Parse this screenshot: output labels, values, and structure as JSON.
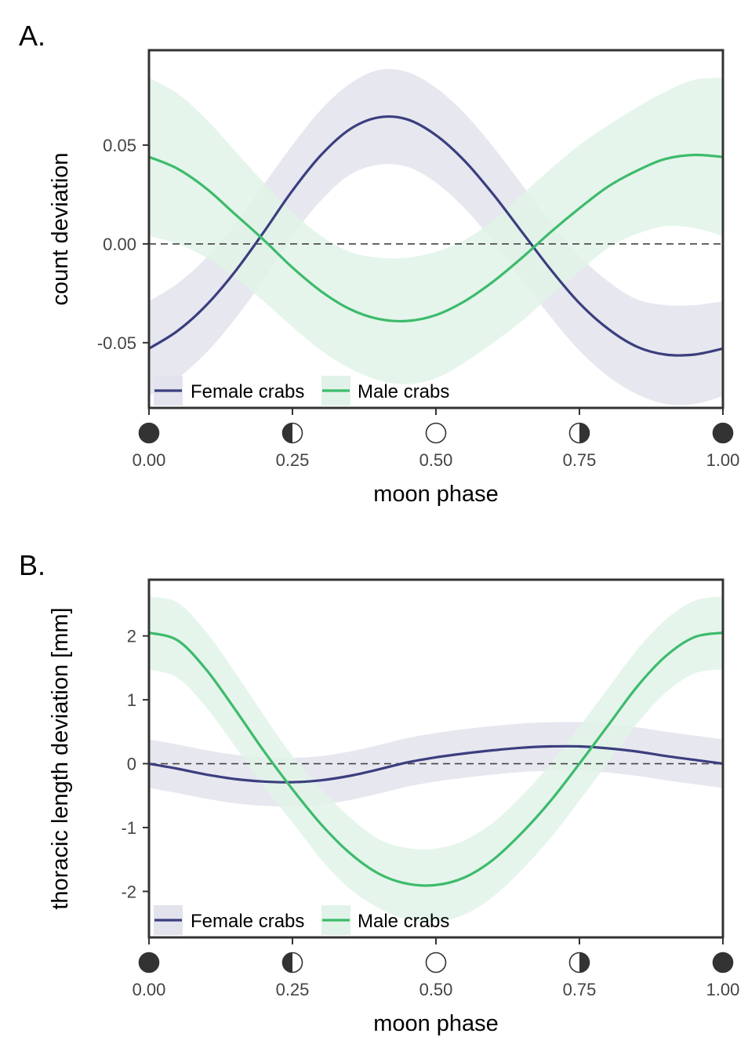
{
  "colors": {
    "female": "#3b3f7e",
    "male": "#3dbb6c",
    "female_band": "#e3e3ed",
    "male_band": "#e1f3e8",
    "axis": "#333333",
    "reference_line": "#444444"
  },
  "chart_data": [
    {
      "panel": "A.",
      "type": "line",
      "xlabel": "moon phase",
      "ylabel": "count deviation",
      "xlim": [
        0,
        1
      ],
      "ylim": [
        -0.083,
        0.098
      ],
      "xticks": [
        0,
        0.25,
        0.5,
        0.75,
        1
      ],
      "xtick_labels": [
        "0.00",
        "0.25",
        "0.50",
        "0.75",
        "1.00"
      ],
      "xtick_icons": [
        "new-moon",
        "first-quarter",
        "full-moon",
        "last-quarter",
        "new-moon"
      ],
      "yticks": [
        -0.05,
        0,
        0.05
      ],
      "ytick_labels": [
        "-0.05",
        "0.00",
        "0.05"
      ],
      "reference_line_y": 0,
      "legend": {
        "position": "bottom-left",
        "entries": [
          "Female crabs",
          "Male crabs"
        ]
      },
      "x": [
        0,
        0.05,
        0.1,
        0.15,
        0.2,
        0.25,
        0.3,
        0.35,
        0.4,
        0.45,
        0.5,
        0.55,
        0.6,
        0.65,
        0.7,
        0.75,
        0.8,
        0.85,
        0.9,
        0.95,
        1
      ],
      "series": [
        {
          "name": "Female crabs",
          "values": [
            -0.053,
            -0.044,
            -0.031,
            -0.014,
            0.006,
            0.027,
            0.045,
            0.058,
            0.064,
            0.063,
            0.055,
            0.042,
            0.025,
            0.006,
            -0.013,
            -0.03,
            -0.043,
            -0.052,
            -0.056,
            -0.056,
            -0.053
          ],
          "upper": [
            -0.029,
            -0.02,
            -0.007,
            0.01,
            0.03,
            0.05,
            0.068,
            0.081,
            0.088,
            0.087,
            0.079,
            0.066,
            0.049,
            0.03,
            0.011,
            -0.006,
            -0.019,
            -0.028,
            -0.031,
            -0.031,
            -0.029
          ],
          "lower": [
            -0.077,
            -0.068,
            -0.055,
            -0.038,
            -0.018,
            0.004,
            0.022,
            0.035,
            0.04,
            0.039,
            0.031,
            0.018,
            0.001,
            -0.018,
            -0.037,
            -0.054,
            -0.067,
            -0.076,
            -0.081,
            -0.081,
            -0.077
          ]
        },
        {
          "name": "Male crabs",
          "values": [
            0.044,
            0.038,
            0.028,
            0.015,
            0.002,
            -0.012,
            -0.024,
            -0.033,
            -0.038,
            -0.039,
            -0.036,
            -0.029,
            -0.019,
            -0.007,
            0.006,
            0.018,
            0.029,
            0.037,
            0.043,
            0.045,
            0.044
          ],
          "upper": [
            0.084,
            0.076,
            0.063,
            0.047,
            0.031,
            0.016,
            0.004,
            -0.004,
            -0.007,
            -0.007,
            -0.004,
            0.002,
            0.012,
            0.025,
            0.038,
            0.05,
            0.06,
            0.069,
            0.077,
            0.083,
            0.084
          ],
          "lower": [
            0.004,
            0.0,
            -0.007,
            -0.017,
            -0.029,
            -0.042,
            -0.054,
            -0.063,
            -0.069,
            -0.071,
            -0.068,
            -0.06,
            -0.05,
            -0.039,
            -0.026,
            -0.014,
            -0.002,
            0.005,
            0.009,
            0.008,
            0.004
          ]
        }
      ]
    },
    {
      "panel": "B.",
      "type": "line",
      "xlabel": "moon phase",
      "ylabel": "thoracic length deviation [mm]",
      "xlim": [
        0,
        1
      ],
      "ylim": [
        -2.72,
        2.88
      ],
      "xticks": [
        0,
        0.25,
        0.5,
        0.75,
        1
      ],
      "xtick_labels": [
        "0.00",
        "0.25",
        "0.50",
        "0.75",
        "1.00"
      ],
      "xtick_icons": [
        "new-moon",
        "first-quarter",
        "full-moon",
        "last-quarter",
        "new-moon"
      ],
      "yticks": [
        -2,
        -1,
        0,
        1,
        2
      ],
      "ytick_labels": [
        "-2",
        "-1",
        "0",
        "1",
        "2"
      ],
      "reference_line_y": 0,
      "legend": {
        "position": "bottom-left",
        "entries": [
          "Female crabs",
          "Male crabs"
        ]
      },
      "x": [
        0,
        0.05,
        0.1,
        0.15,
        0.2,
        0.25,
        0.3,
        0.35,
        0.4,
        0.45,
        0.5,
        0.55,
        0.6,
        0.65,
        0.7,
        0.75,
        0.8,
        0.85,
        0.9,
        0.95,
        1
      ],
      "series": [
        {
          "name": "Female crabs",
          "values": [
            0.0,
            -0.08,
            -0.17,
            -0.24,
            -0.28,
            -0.29,
            -0.26,
            -0.19,
            -0.09,
            0.02,
            0.1,
            0.16,
            0.21,
            0.25,
            0.27,
            0.27,
            0.24,
            0.19,
            0.12,
            0.06,
            0.0
          ],
          "upper": [
            0.38,
            0.3,
            0.21,
            0.14,
            0.1,
            0.09,
            0.12,
            0.19,
            0.29,
            0.4,
            0.48,
            0.54,
            0.59,
            0.63,
            0.65,
            0.65,
            0.62,
            0.57,
            0.5,
            0.44,
            0.38
          ],
          "lower": [
            -0.38,
            -0.46,
            -0.55,
            -0.62,
            -0.66,
            -0.67,
            -0.64,
            -0.57,
            -0.47,
            -0.36,
            -0.28,
            -0.22,
            -0.17,
            -0.13,
            -0.11,
            -0.11,
            -0.14,
            -0.19,
            -0.26,
            -0.32,
            -0.38
          ]
        },
        {
          "name": "Male crabs",
          "values": [
            2.05,
            1.93,
            1.47,
            0.85,
            0.2,
            -0.4,
            -0.95,
            -1.4,
            -1.72,
            -1.88,
            -1.9,
            -1.78,
            -1.5,
            -1.08,
            -0.58,
            0.0,
            0.6,
            1.2,
            1.68,
            1.98,
            2.05
          ],
          "upper": [
            2.62,
            2.52,
            2.06,
            1.43,
            0.76,
            0.12,
            -0.4,
            -0.84,
            -1.18,
            -1.32,
            -1.33,
            -1.2,
            -0.92,
            -0.5,
            0.0,
            0.58,
            1.18,
            1.78,
            2.25,
            2.55,
            2.62
          ],
          "lower": [
            1.48,
            1.34,
            0.88,
            0.27,
            -0.36,
            -0.92,
            -1.5,
            -1.96,
            -2.26,
            -2.44,
            -2.47,
            -2.36,
            -2.08,
            -1.66,
            -1.16,
            -0.58,
            0.02,
            0.62,
            1.11,
            1.41,
            1.48
          ]
        }
      ]
    }
  ]
}
